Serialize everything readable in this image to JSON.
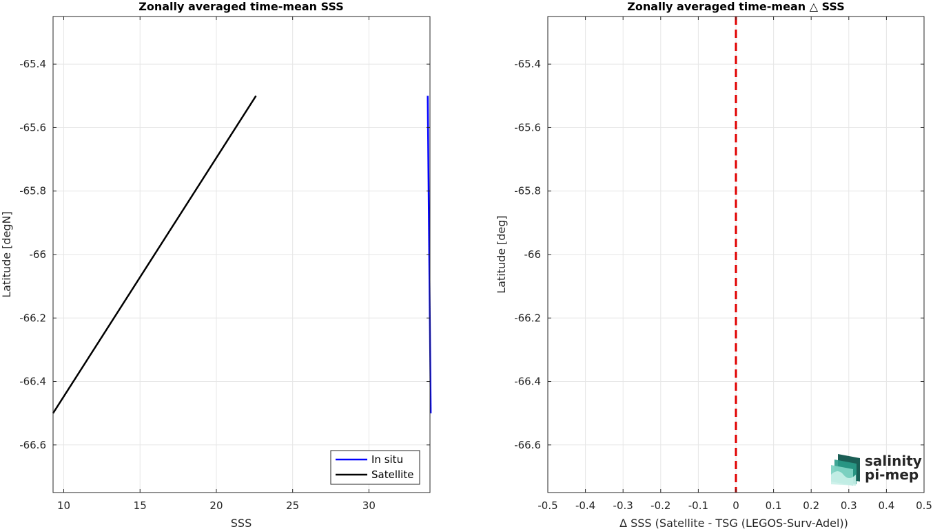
{
  "chart_data": [
    {
      "type": "line",
      "title": "Zonally averaged time-mean SSS",
      "xlabel": "SSS",
      "ylabel": "Latitude [degN]",
      "xlim": [
        9.3,
        34.0
      ],
      "ylim": [
        -66.75,
        -65.25
      ],
      "xticks": [
        10,
        15,
        20,
        25,
        30
      ],
      "yticks": [
        -65.4,
        -65.6,
        -65.8,
        -66,
        -66.2,
        -66.4,
        -66.6
      ],
      "xtick_labels": [
        "10",
        "15",
        "20",
        "25",
        "30"
      ],
      "ytick_labels": [
        "-65.4",
        "-65.6",
        "-65.8",
        "-66",
        "-66.2",
        "-66.4",
        "-66.6"
      ],
      "grid": true,
      "legend_position": "bottom-right",
      "series": [
        {
          "name": "In situ",
          "color": "#0000ff",
          "x": [
            33.85,
            34.05
          ],
          "y": [
            -65.5,
            -66.5
          ]
        },
        {
          "name": "Satellite",
          "color": "#000000",
          "x": [
            22.6,
            9.3
          ],
          "y": [
            -65.5,
            -66.5
          ]
        }
      ]
    },
    {
      "type": "line",
      "title": "Zonally averaged time-mean △ SSS",
      "xlabel": "Δ SSS (Satellite - TSG (LEGOS-Surv-Adel))",
      "ylabel": "Latitude [deg]",
      "xlim": [
        -0.5,
        0.5
      ],
      "ylim": [
        -66.75,
        -65.25
      ],
      "xticks": [
        -0.5,
        -0.4,
        -0.3,
        -0.2,
        -0.1,
        0,
        0.1,
        0.2,
        0.3,
        0.4,
        0.5
      ],
      "yticks": [
        -65.4,
        -65.6,
        -65.8,
        -66,
        -66.2,
        -66.4,
        -66.6
      ],
      "xtick_labels": [
        "-0.5",
        "-0.4",
        "-0.3",
        "-0.2",
        "-0.1",
        "0",
        "0.1",
        "0.2",
        "0.3",
        "0.4",
        "0.5"
      ],
      "ytick_labels": [
        "-65.4",
        "-65.6",
        "-65.8",
        "-66",
        "-66.2",
        "-66.4",
        "-66.6"
      ],
      "grid": true,
      "reference_line": {
        "x": 0,
        "color": "#e00000",
        "style": "dashed"
      }
    }
  ],
  "logo": {
    "line1": "salinity",
    "line2": "pi-mep",
    "color": "#1a9e8c",
    "color_dark": "#1b5e55"
  }
}
